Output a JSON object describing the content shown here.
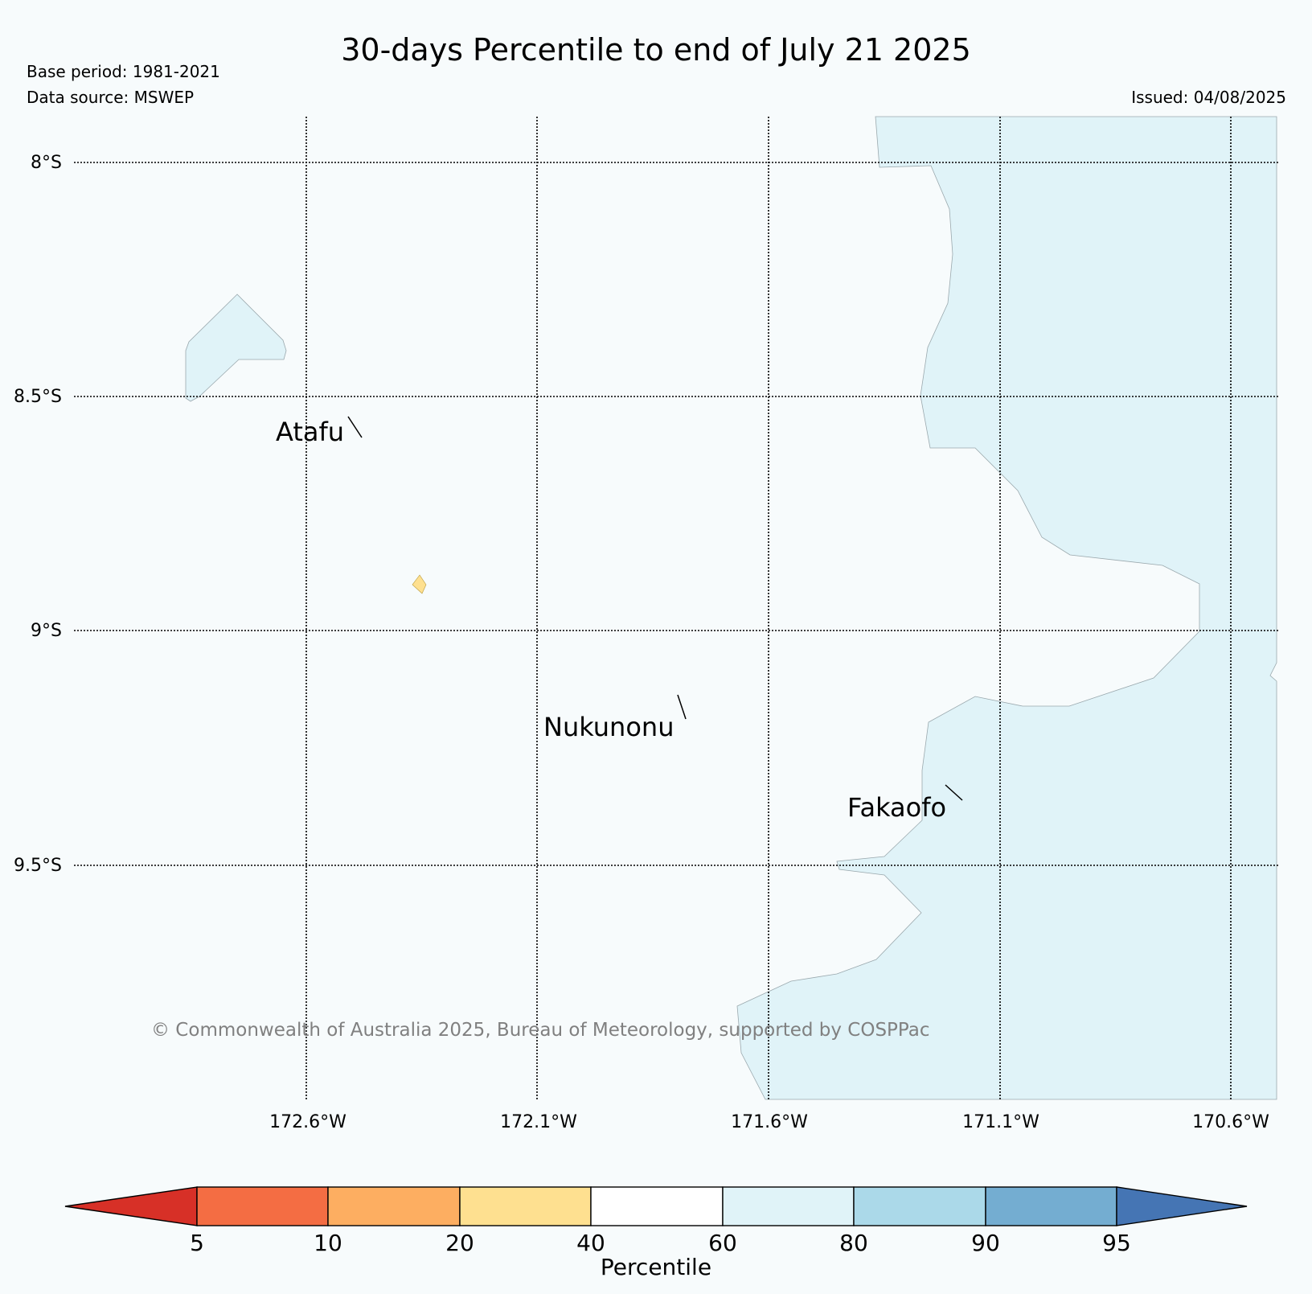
{
  "header": {
    "title": "30-days Percentile to end of July 21 2025",
    "base_period": "Base period: 1981-2021",
    "data_source": "Data source: MSWEP",
    "issued": "Issued: 04/08/2025"
  },
  "map": {
    "lat_labels": [
      "8°S",
      "8.5°S",
      "9°S",
      "9.5°S"
    ],
    "lon_labels": [
      "172.6°W",
      "172.1°W",
      "171.6°W",
      "171.1°W",
      "170.6°W"
    ],
    "places": [
      {
        "name": "Atafu"
      },
      {
        "name": "Nukunonu"
      },
      {
        "name": "Fakaofo"
      }
    ],
    "copyright": "© Commonwealth of Australia 2025, Bureau of Meteorology, supported by COSPPac",
    "colors": {
      "land_60_80": "#e0f3f8",
      "land_20_40": "#fee090",
      "background": "#f7fbfc"
    }
  },
  "colorbar": {
    "label": "Percentile",
    "ticks": [
      "5",
      "10",
      "20",
      "40",
      "60",
      "80",
      "90",
      "95"
    ],
    "colors": [
      "#d73027",
      "#f46d43",
      "#fdae61",
      "#fee090",
      "#ffffff",
      "#e0f3f8",
      "#abd9e9",
      "#74add1",
      "#4575b4"
    ]
  }
}
